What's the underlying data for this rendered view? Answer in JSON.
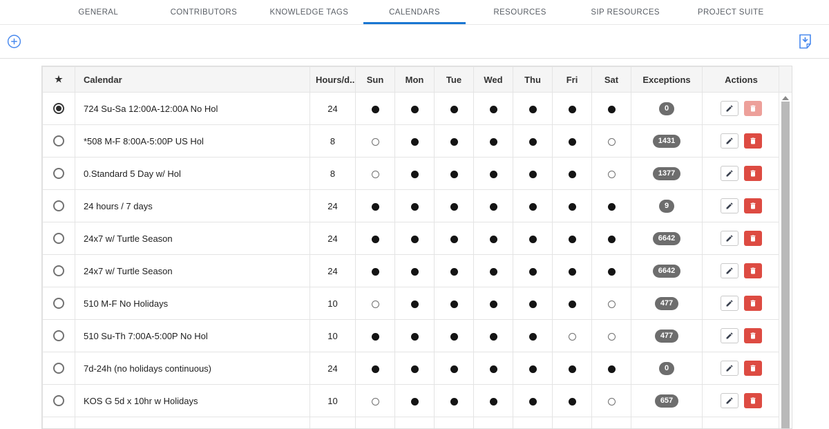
{
  "tabs": {
    "items": [
      {
        "label": "GENERAL",
        "active": false
      },
      {
        "label": "CONTRIBUTORS",
        "active": false
      },
      {
        "label": "KNOWLEDGE TAGS",
        "active": false
      },
      {
        "label": "CALENDARS",
        "active": true
      },
      {
        "label": "RESOURCES",
        "active": false
      },
      {
        "label": "SIP RESOURCES",
        "active": false
      },
      {
        "label": "PROJECT SUITE",
        "active": false
      }
    ]
  },
  "toolbar": {
    "add_icon": "circle-plus-icon",
    "export_icon": "file-download-icon"
  },
  "table": {
    "headers": {
      "star": "★",
      "calendar": "Calendar",
      "hours": "Hours/d...",
      "days": [
        "Sun",
        "Mon",
        "Tue",
        "Wed",
        "Thu",
        "Fri",
        "Sat"
      ],
      "exceptions": "Exceptions",
      "actions": "Actions"
    },
    "rows": [
      {
        "name": "724 Su-Sa 12:00A-12:00A No Hol",
        "hours": "24",
        "days": [
          1,
          1,
          1,
          1,
          1,
          1,
          1
        ],
        "exceptions": "0",
        "selected": true,
        "delete_disabled": true
      },
      {
        "name": "*508 M-F 8:00A-5:00P US Hol",
        "hours": "8",
        "days": [
          0,
          1,
          1,
          1,
          1,
          1,
          0
        ],
        "exceptions": "1431",
        "selected": false,
        "delete_disabled": false
      },
      {
        "name": "0.Standard 5 Day w/ Hol",
        "hours": "8",
        "days": [
          0,
          1,
          1,
          1,
          1,
          1,
          0
        ],
        "exceptions": "1377",
        "selected": false,
        "delete_disabled": false
      },
      {
        "name": "24 hours / 7 days",
        "hours": "24",
        "days": [
          1,
          1,
          1,
          1,
          1,
          1,
          1
        ],
        "exceptions": "9",
        "selected": false,
        "delete_disabled": false
      },
      {
        "name": "24x7 w/ Turtle Season",
        "hours": "24",
        "days": [
          1,
          1,
          1,
          1,
          1,
          1,
          1
        ],
        "exceptions": "6642",
        "selected": false,
        "delete_disabled": false
      },
      {
        "name": "24x7 w/ Turtle Season",
        "hours": "24",
        "days": [
          1,
          1,
          1,
          1,
          1,
          1,
          1
        ],
        "exceptions": "6642",
        "selected": false,
        "delete_disabled": false
      },
      {
        "name": "510 M-F No Holidays",
        "hours": "10",
        "days": [
          0,
          1,
          1,
          1,
          1,
          1,
          0
        ],
        "exceptions": "477",
        "selected": false,
        "delete_disabled": false
      },
      {
        "name": "510 Su-Th 7:00A-5:00P No Hol",
        "hours": "10",
        "days": [
          1,
          1,
          1,
          1,
          1,
          0,
          0
        ],
        "exceptions": "477",
        "selected": false,
        "delete_disabled": false
      },
      {
        "name": "7d-24h (no holidays continuous)",
        "hours": "24",
        "days": [
          1,
          1,
          1,
          1,
          1,
          1,
          1
        ],
        "exceptions": "0",
        "selected": false,
        "delete_disabled": false
      },
      {
        "name": "KOS G 5d x 10hr w Holidays",
        "hours": "10",
        "days": [
          0,
          1,
          1,
          1,
          1,
          1,
          0
        ],
        "exceptions": "657",
        "selected": false,
        "delete_disabled": false
      }
    ]
  },
  "colors": {
    "active_tab_underline": "#1976d2",
    "toolbar_icon_blue": "#4788ee",
    "badge_gray": "#6d6d6d",
    "delete_red": "#dd4b42",
    "delete_red_disabled": "#eda09a",
    "header_bg": "#f5f5f5"
  }
}
